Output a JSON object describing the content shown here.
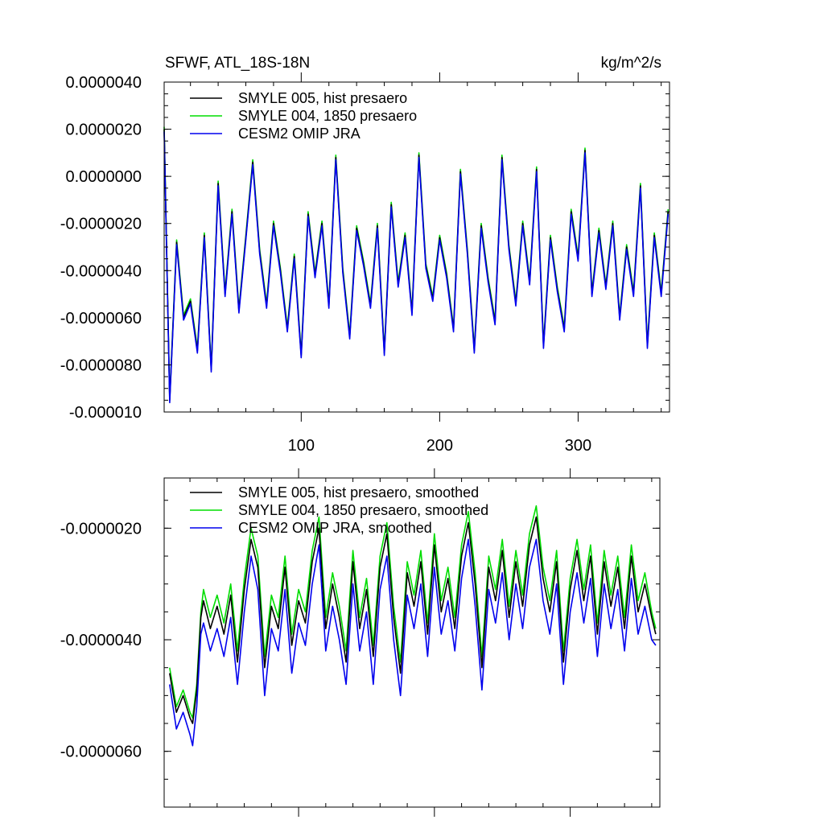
{
  "chart_data": [
    {
      "type": "line",
      "title": "SFWF, ATL_18S-18N",
      "units": "kg/m^2/s",
      "xlabel": "",
      "ylabel": "",
      "xlim": [
        1,
        366
      ],
      "ylim": [
        -1e-05,
        4e-06
      ],
      "xticks": [
        100,
        200,
        300
      ],
      "xtick_labels": [
        "100",
        "200",
        "300"
      ],
      "yticks": [
        4e-06,
        2e-06,
        0.0,
        -2e-06,
        -4e-06,
        -6e-06,
        -8e-06,
        -1e-05
      ],
      "ytick_labels": [
        "0.0000040",
        "0.0000020",
        "0.0000000",
        "-0.0000020",
        "-0.0000040",
        "-0.0000060",
        "-0.0000080",
        "-0.000010"
      ],
      "grid": false,
      "legend_position": "top-left",
      "x": [
        1,
        5,
        10,
        15,
        20,
        25,
        30,
        35,
        40,
        45,
        50,
        55,
        60,
        65,
        70,
        75,
        80,
        85,
        90,
        95,
        100,
        105,
        110,
        115,
        120,
        125,
        130,
        135,
        140,
        145,
        150,
        155,
        160,
        165,
        170,
        175,
        180,
        185,
        190,
        195,
        200,
        205,
        210,
        215,
        220,
        225,
        230,
        235,
        240,
        245,
        250,
        255,
        260,
        265,
        270,
        275,
        280,
        285,
        290,
        295,
        300,
        305,
        310,
        315,
        320,
        325,
        330,
        335,
        340,
        345,
        350,
        355,
        360,
        365
      ],
      "series": [
        {
          "name": "SMYLE 005, hist presaero",
          "color": "#000000",
          "values": [
            2e-06,
            -9.5e-06,
            -2.8e-06,
            -6e-06,
            -5.3e-06,
            -7.4e-06,
            -2.5e-06,
            -8.2e-06,
            -3e-07,
            -5e-06,
            -1.5e-06,
            -5.7e-06,
            -2.6e-06,
            6e-07,
            -3.2e-06,
            -5.5e-06,
            -2e-06,
            -4e-06,
            -6.5e-06,
            -3.4e-06,
            -7.6e-06,
            -1.6e-06,
            -4.2e-06,
            -2e-06,
            -5.5e-06,
            8e-07,
            -4e-06,
            -6.8e-06,
            -2.2e-06,
            -3.7e-06,
            -5.5e-06,
            -2.1e-06,
            -7.5e-06,
            -1.2e-06,
            -4.6e-06,
            -2.5e-06,
            -5.8e-06,
            9e-07,
            -3.8e-06,
            -5.2e-06,
            -2.6e-06,
            -4.2e-06,
            -6.5e-06,
            2e-07,
            -3.2e-06,
            -7.4e-06,
            -2.1e-06,
            -4.4e-06,
            -6.2e-06,
            8e-07,
            -3e-06,
            -5.4e-06,
            -2e-06,
            -4.5e-06,
            3e-07,
            -7.2e-06,
            -2.6e-06,
            -4.8e-06,
            -6.5e-06,
            -1.5e-06,
            -3.5e-06,
            1.1e-06,
            -5e-06,
            -2.3e-06,
            -4.7e-06,
            -2e-06,
            -6e-06,
            -3e-06,
            -5e-06,
            -4e-07,
            -7.2e-06,
            -2.5e-06,
            -5e-06,
            -1.5e-06
          ]
        },
        {
          "name": "SMYLE 004, 1850 presaero",
          "color": "#00dd00",
          "values": [
            2.1e-06,
            -9.4e-06,
            -2.7e-06,
            -5.9e-06,
            -5.2e-06,
            -7.3e-06,
            -2.4e-06,
            -8.1e-06,
            -2e-07,
            -4.9e-06,
            -1.4e-06,
            -5.6e-06,
            -2.5e-06,
            7e-07,
            -3.1e-06,
            -5.4e-06,
            -1.9e-06,
            -3.9e-06,
            -6.4e-06,
            -3.3e-06,
            -7.5e-06,
            -1.5e-06,
            -4.1e-06,
            -1.9e-06,
            -5.4e-06,
            9e-07,
            -3.9e-06,
            -6.7e-06,
            -2.1e-06,
            -3.6e-06,
            -5.4e-06,
            -2e-06,
            -7.4e-06,
            -1.1e-06,
            -4.5e-06,
            -2.4e-06,
            -5.7e-06,
            1e-06,
            -3.7e-06,
            -5.1e-06,
            -2.5e-06,
            -4.1e-06,
            -6.4e-06,
            3e-07,
            -3.1e-06,
            -7.3e-06,
            -2e-06,
            -4.3e-06,
            -6.1e-06,
            9e-07,
            -2.9e-06,
            -5.3e-06,
            -1.9e-06,
            -4.4e-06,
            4e-07,
            -7.1e-06,
            -2.5e-06,
            -4.7e-06,
            -6.4e-06,
            -1.4e-06,
            -3.4e-06,
            1.2e-06,
            -4.9e-06,
            -2.2e-06,
            -4.6e-06,
            -1.9e-06,
            -5.9e-06,
            -2.9e-06,
            -4.9e-06,
            -3e-07,
            -7.1e-06,
            -2.4e-06,
            -4.9e-06,
            -1.4e-06
          ]
        },
        {
          "name": "CESM2 OMIP JRA",
          "color": "#0000ee",
          "values": [
            1.9e-06,
            -9.6e-06,
            -2.9e-06,
            -6.1e-06,
            -5.4e-06,
            -7.5e-06,
            -2.6e-06,
            -8.3e-06,
            -4e-07,
            -5.1e-06,
            -1.6e-06,
            -5.8e-06,
            -2.7e-06,
            5e-07,
            -3.3e-06,
            -5.6e-06,
            -2.1e-06,
            -4.1e-06,
            -6.6e-06,
            -3.5e-06,
            -7.7e-06,
            -1.7e-06,
            -4.3e-06,
            -2.1e-06,
            -5.6e-06,
            7e-07,
            -4.1e-06,
            -6.9e-06,
            -2.3e-06,
            -3.8e-06,
            -5.6e-06,
            -2.2e-06,
            -7.6e-06,
            -1.3e-06,
            -4.7e-06,
            -2.6e-06,
            -5.9e-06,
            8e-07,
            -3.9e-06,
            -5.3e-06,
            -2.7e-06,
            -4.3e-06,
            -6.6e-06,
            1e-07,
            -3.3e-06,
            -7.5e-06,
            -2.2e-06,
            -4.5e-06,
            -6.3e-06,
            7e-07,
            -3.1e-06,
            -5.5e-06,
            -2.1e-06,
            -4.6e-06,
            2e-07,
            -7.3e-06,
            -2.7e-06,
            -4.9e-06,
            -6.6e-06,
            -1.6e-06,
            -3.6e-06,
            1e-06,
            -5.1e-06,
            -2.4e-06,
            -4.8e-06,
            -2.1e-06,
            -6.1e-06,
            -3.1e-06,
            -5.1e-06,
            -5e-07,
            -7.3e-06,
            -2.6e-06,
            -5.1e-06,
            -1.6e-06
          ]
        }
      ]
    },
    {
      "type": "line",
      "title": "",
      "xlabel": "",
      "ylabel": "",
      "xlim": [
        1,
        366
      ],
      "ylim": [
        -7e-06,
        -1.1e-06
      ],
      "xticks": [
        100,
        200,
        300
      ],
      "xtick_labels": [
        "",
        "",
        ""
      ],
      "yticks": [
        -2e-06,
        -4e-06,
        -6e-06
      ],
      "ytick_labels": [
        "-0.0000020",
        "-0.0000040",
        "-0.0000060"
      ],
      "grid": false,
      "legend_position": "top-left",
      "x": [
        5,
        10,
        15,
        20,
        22,
        25,
        28,
        30,
        35,
        40,
        45,
        50,
        55,
        60,
        65,
        70,
        75,
        80,
        85,
        90,
        95,
        100,
        105,
        110,
        115,
        120,
        125,
        130,
        135,
        140,
        145,
        150,
        155,
        160,
        165,
        170,
        175,
        180,
        185,
        190,
        195,
        200,
        205,
        210,
        215,
        220,
        225,
        230,
        235,
        240,
        245,
        250,
        255,
        260,
        265,
        270,
        275,
        280,
        285,
        290,
        295,
        300,
        305,
        310,
        315,
        320,
        325,
        330,
        335,
        340,
        345,
        350,
        355,
        360,
        363
      ],
      "series": [
        {
          "name": "SMYLE 005, hist presaero, smoothed",
          "color": "#000000",
          "values": [
            -4.6e-06,
            -5.3e-06,
            -5e-06,
            -5.4e-06,
            -5.5e-06,
            -4.9e-06,
            -3.6e-06,
            -3.3e-06,
            -3.8e-06,
            -3.4e-06,
            -3.9e-06,
            -3.2e-06,
            -4.4e-06,
            -3.1e-06,
            -2.2e-06,
            -2.7e-06,
            -4.5e-06,
            -3.4e-06,
            -3.8e-06,
            -2.7e-06,
            -4.1e-06,
            -3.3e-06,
            -3.7e-06,
            -2.6e-06,
            -2e-06,
            -3.8e-06,
            -3e-06,
            -3.6e-06,
            -4.4e-06,
            -2.6e-06,
            -3.8e-06,
            -3.1e-06,
            -4.3e-06,
            -2.7e-06,
            -2.1e-06,
            -3.6e-06,
            -4.6e-06,
            -2.8e-06,
            -3.4e-06,
            -2.6e-06,
            -3.9e-06,
            -2.3e-06,
            -3.5e-06,
            -2.9e-06,
            -3.8e-06,
            -2.5e-06,
            -1.9e-06,
            -3e-06,
            -4.5e-06,
            -2.7e-06,
            -3.3e-06,
            -2.4e-06,
            -3.6e-06,
            -2.6e-06,
            -3.4e-06,
            -2.3e-06,
            -1.8e-06,
            -2.9e-06,
            -3.5e-06,
            -2.6e-06,
            -4.4e-06,
            -3.1e-06,
            -2.4e-06,
            -3.3e-06,
            -2.5e-06,
            -3.9e-06,
            -2.6e-06,
            -3.4e-06,
            -2.7e-06,
            -3.8e-06,
            -2.5e-06,
            -3.5e-06,
            -3e-06,
            -3.6e-06,
            -3.9e-06
          ]
        },
        {
          "name": "SMYLE 004, 1850 presaero, smoothed",
          "color": "#00dd00",
          "values": [
            -4.5e-06,
            -5.2e-06,
            -4.9e-06,
            -5.3e-06,
            -5.4e-06,
            -4.8e-06,
            -3.5e-06,
            -3.1e-06,
            -3.6e-06,
            -3.2e-06,
            -3.7e-06,
            -3e-06,
            -4.2e-06,
            -2.9e-06,
            -2e-06,
            -2.5e-06,
            -4.3e-06,
            -3.2e-06,
            -3.6e-06,
            -2.5e-06,
            -3.9e-06,
            -3.1e-06,
            -3.5e-06,
            -2.4e-06,
            -1.8e-06,
            -3.6e-06,
            -2.8e-06,
            -3.4e-06,
            -4.2e-06,
            -2.4e-06,
            -3.6e-06,
            -2.9e-06,
            -4.1e-06,
            -2.5e-06,
            -1.9e-06,
            -3.4e-06,
            -4.4e-06,
            -2.6e-06,
            -3.2e-06,
            -2.4e-06,
            -3.7e-06,
            -2.1e-06,
            -3.3e-06,
            -2.7e-06,
            -3.6e-06,
            -2.3e-06,
            -1.7e-06,
            -2.8e-06,
            -4.3e-06,
            -2.5e-06,
            -3.1e-06,
            -2.2e-06,
            -3.4e-06,
            -2.4e-06,
            -3.2e-06,
            -2.1e-06,
            -1.6e-06,
            -2.7e-06,
            -3.3e-06,
            -2.4e-06,
            -4.2e-06,
            -2.9e-06,
            -2.2e-06,
            -3.1e-06,
            -2.3e-06,
            -3.7e-06,
            -2.4e-06,
            -3.2e-06,
            -2.5e-06,
            -3.6e-06,
            -2.3e-06,
            -3.3e-06,
            -2.8e-06,
            -3.5e-06,
            -3.8e-06
          ]
        },
        {
          "name": "CESM2 OMIP JRA, smoothed",
          "color": "#0000ee",
          "values": [
            -4.8e-06,
            -5.6e-06,
            -5.3e-06,
            -5.7e-06,
            -5.9e-06,
            -5.2e-06,
            -3.9e-06,
            -3.7e-06,
            -4.2e-06,
            -3.8e-06,
            -4.3e-06,
            -3.6e-06,
            -4.8e-06,
            -3.5e-06,
            -2.5e-06,
            -3.1e-06,
            -5e-06,
            -3.8e-06,
            -4.2e-06,
            -3.1e-06,
            -4.6e-06,
            -3.7e-06,
            -4.1e-06,
            -3e-06,
            -2.3e-06,
            -4.2e-06,
            -3.4e-06,
            -4e-06,
            -4.8e-06,
            -3e-06,
            -4.2e-06,
            -3.5e-06,
            -4.8e-06,
            -3.1e-06,
            -2.5e-06,
            -4e-06,
            -5e-06,
            -3.2e-06,
            -3.8e-06,
            -3e-06,
            -4.3e-06,
            -2.7e-06,
            -3.9e-06,
            -3.3e-06,
            -4.2e-06,
            -2.9e-06,
            -2.2e-06,
            -3.4e-06,
            -4.9e-06,
            -3.1e-06,
            -3.7e-06,
            -2.8e-06,
            -4e-06,
            -3e-06,
            -3.8e-06,
            -2.7e-06,
            -2.2e-06,
            -3.3e-06,
            -3.9e-06,
            -3e-06,
            -4.8e-06,
            -3.5e-06,
            -2.8e-06,
            -3.7e-06,
            -2.9e-06,
            -4.3e-06,
            -3e-06,
            -3.8e-06,
            -3.1e-06,
            -4.2e-06,
            -2.9e-06,
            -3.9e-06,
            -3.4e-06,
            -4e-06,
            -4.1e-06
          ]
        }
      ]
    }
  ]
}
